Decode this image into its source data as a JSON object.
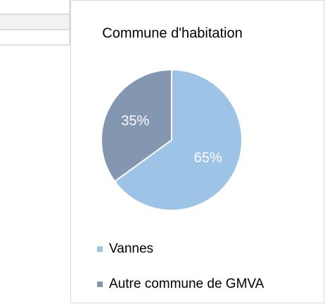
{
  "chart_data": {
    "type": "pie",
    "title": "Commune d'habitation",
    "categories": [
      "Vannes",
      "Autre commune de GMVA"
    ],
    "values": [
      65,
      35
    ],
    "value_labels": [
      "65%",
      "35%"
    ],
    "colors": [
      "#9dc3e6",
      "#8497b0"
    ],
    "legend": "bottom"
  }
}
